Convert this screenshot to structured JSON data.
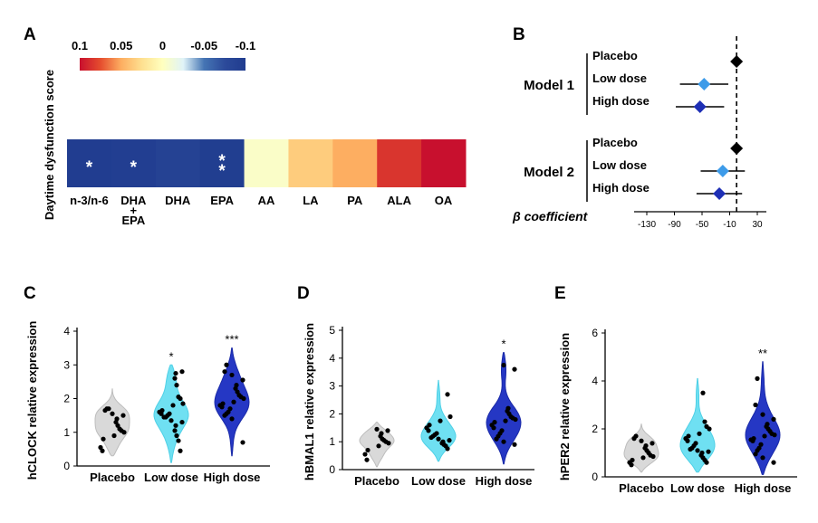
{
  "panels": {
    "A": "A",
    "B": "B",
    "C": "C",
    "D": "D",
    "E": "E"
  },
  "colors": {
    "heat_stops": [
      "#c8102e",
      "#e54d2e",
      "#fdae61",
      "#fee090",
      "#ffffbf",
      "#e0f3f8",
      "#4575b4",
      "#2c4a9a",
      "#203c8f"
    ],
    "placebo_fill": "#d9d9d9",
    "low_fill": "#6fe0f2",
    "high_fill": "#2537c4",
    "diamond_black": "#000000",
    "diamond_low": "#3d9be9",
    "diamond_high": "#1e2fb5"
  },
  "chart_data": [
    {
      "id": "A",
      "type": "heatmap",
      "ylabel": "Daytime dysfunction score",
      "colorbar": {
        "ticks": [
          "0.1",
          "0.05",
          "0",
          "-0.05",
          "-0.1"
        ],
        "range": [
          0.1,
          -0.1
        ]
      },
      "cells": [
        {
          "label": "n-3/n-6",
          "value": -0.098,
          "sig": "*"
        },
        {
          "label": "DHA\n+\nEPA",
          "value": -0.096,
          "sig": "*"
        },
        {
          "label": "DHA",
          "value": -0.09,
          "sig": ""
        },
        {
          "label": "EPA",
          "value": -0.097,
          "sig": "**"
        },
        {
          "label": "AA",
          "value": -0.004,
          "sig": ""
        },
        {
          "label": "LA",
          "value": 0.035,
          "sig": ""
        },
        {
          "label": "PA",
          "value": 0.05,
          "sig": ""
        },
        {
          "label": "ALA",
          "value": 0.085,
          "sig": ""
        },
        {
          "label": "OA",
          "value": 0.1,
          "sig": ""
        }
      ]
    },
    {
      "id": "B",
      "type": "scatter",
      "subtype": "forest",
      "xlabel": "β coefficient",
      "xticks": [
        "-130",
        "-90",
        "-50",
        "-10",
        "30"
      ],
      "xlim": [
        -130,
        30
      ],
      "reference_line": 0,
      "models": [
        {
          "name": "Model 1",
          "rows": [
            {
              "label": "Placebo",
              "estimate": 0,
              "ci": null
            },
            {
              "label": "Low dose",
              "estimate": -47,
              "ci": [
                -82,
                -12
              ]
            },
            {
              "label": "High dose",
              "estimate": -53,
              "ci": [
                -88,
                -18
              ]
            }
          ]
        },
        {
          "name": "Model 2",
          "rows": [
            {
              "label": "Placebo",
              "estimate": 0,
              "ci": null
            },
            {
              "label": "Low dose",
              "estimate": -20,
              "ci": [
                -52,
                12
              ]
            },
            {
              "label": "High dose",
              "estimate": -25,
              "ci": [
                -58,
                8
              ]
            }
          ]
        }
      ]
    },
    {
      "id": "C",
      "type": "scatter",
      "subtype": "violin",
      "ylabel": "hCLOCK relative expression",
      "ylim": [
        0,
        4
      ],
      "yticks": [
        "0",
        "1",
        "2",
        "3",
        "4"
      ],
      "categories": [
        "Placebo",
        "Low dose",
        "High dose"
      ],
      "significance": [
        "",
        "*",
        "***"
      ],
      "violin_range": [
        [
          0.3,
          2.3
        ],
        [
          0.1,
          3.0
        ],
        [
          0.3,
          3.5
        ]
      ],
      "points": [
        [
          0.45,
          0.55,
          0.8,
          0.9,
          1.0,
          1.05,
          1.1,
          1.2,
          1.3,
          1.4,
          1.5,
          1.55,
          1.65,
          1.7,
          1.7
        ],
        [
          0.45,
          0.75,
          0.9,
          1.05,
          1.2,
          1.3,
          1.35,
          1.45,
          1.45,
          1.5,
          1.55,
          1.55,
          1.6,
          1.65,
          1.8,
          1.85,
          2.0,
          2.05,
          2.4,
          2.6,
          2.75,
          2.8
        ],
        [
          0.7,
          1.4,
          1.5,
          1.55,
          1.6,
          1.7,
          1.75,
          1.8,
          1.85,
          1.9,
          2.0,
          2.05,
          2.1,
          2.2,
          2.3,
          2.4,
          2.55,
          2.7,
          2.8,
          3.0
        ]
      ]
    },
    {
      "id": "D",
      "type": "scatter",
      "subtype": "violin",
      "ylabel": "hBMAL1 relative expression",
      "ylim": [
        0,
        5
      ],
      "yticks": [
        "0",
        "1",
        "2",
        "3",
        "4",
        "5"
      ],
      "categories": [
        "Placebo",
        "Low dose",
        "High dose"
      ],
      "significance": [
        "",
        "",
        "*"
      ],
      "violin_range": [
        [
          0.1,
          1.7
        ],
        [
          0.3,
          3.2
        ],
        [
          0.2,
          4.2
        ]
      ],
      "points": [
        [
          0.35,
          0.55,
          0.7,
          0.85,
          0.95,
          1.0,
          1.05,
          1.1,
          1.2,
          1.3,
          1.4,
          1.45
        ],
        [
          0.75,
          0.85,
          0.9,
          0.95,
          1.0,
          1.05,
          1.1,
          1.15,
          1.2,
          1.25,
          1.3,
          1.4,
          1.5,
          1.6,
          1.75,
          1.9,
          2.7
        ],
        [
          0.9,
          1.0,
          1.1,
          1.2,
          1.3,
          1.4,
          1.5,
          1.6,
          1.7,
          1.75,
          1.8,
          1.85,
          1.9,
          2.0,
          2.1,
          2.2,
          3.6,
          3.75
        ]
      ]
    },
    {
      "id": "E",
      "type": "scatter",
      "subtype": "violin",
      "ylabel": "hPER2 relative expression",
      "ylim": [
        0,
        6
      ],
      "yticks": [
        "0",
        "2",
        "4",
        "6"
      ],
      "categories": [
        "Placebo",
        "Low dose",
        "High dose"
      ],
      "significance": [
        "",
        "",
        "**"
      ],
      "violin_range": [
        [
          0.2,
          2.2
        ],
        [
          0.2,
          4.1
        ],
        [
          0.1,
          4.8
        ]
      ],
      "points": [
        [
          0.5,
          0.6,
          0.7,
          0.8,
          0.85,
          0.9,
          1.0,
          1.1,
          1.2,
          1.3,
          1.4,
          1.5,
          1.6,
          1.7
        ],
        [
          0.6,
          0.7,
          0.8,
          0.9,
          1.0,
          1.05,
          1.1,
          1.15,
          1.2,
          1.3,
          1.4,
          1.5,
          1.6,
          1.7,
          1.8,
          2.0,
          2.1,
          2.3,
          3.5
        ],
        [
          0.6,
          0.8,
          0.95,
          1.1,
          1.2,
          1.35,
          1.5,
          1.55,
          1.6,
          1.7,
          1.75,
          1.8,
          1.9,
          2.0,
          2.1,
          2.2,
          2.4,
          2.6,
          3.0,
          4.1
        ]
      ]
    }
  ]
}
